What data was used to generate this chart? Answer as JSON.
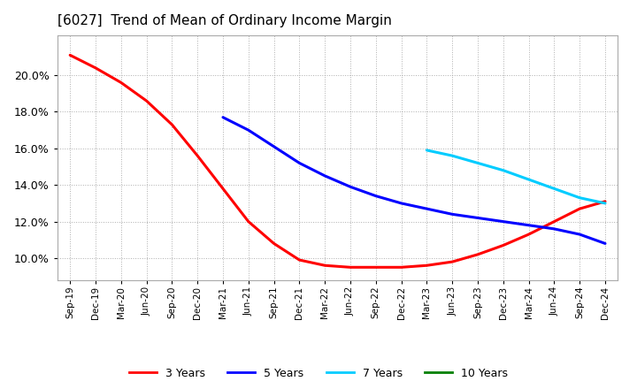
{
  "title": "[6027]  Trend of Mean of Ordinary Income Margin",
  "title_fontsize": 11,
  "background_color": "#ffffff",
  "plot_bg_color": "#ffffff",
  "grid_color": "#999999",
  "ylim": [
    0.088,
    0.222
  ],
  "yticks": [
    0.1,
    0.12,
    0.14,
    0.16,
    0.18,
    0.2
  ],
  "series": {
    "3 Years": {
      "color": "#ff0000",
      "points": [
        [
          0,
          0.211
        ],
        [
          1,
          0.204
        ],
        [
          2,
          0.196
        ],
        [
          3,
          0.186
        ],
        [
          4,
          0.173
        ],
        [
          5,
          0.156
        ],
        [
          6,
          0.138
        ],
        [
          7,
          0.12
        ],
        [
          8,
          0.108
        ],
        [
          9,
          0.099
        ],
        [
          10,
          0.096
        ],
        [
          11,
          0.095
        ],
        [
          12,
          0.095
        ],
        [
          13,
          0.095
        ],
        [
          14,
          0.096
        ],
        [
          15,
          0.098
        ],
        [
          16,
          0.102
        ],
        [
          17,
          0.107
        ],
        [
          18,
          0.113
        ],
        [
          19,
          0.12
        ],
        [
          20,
          0.127
        ],
        [
          21,
          0.131
        ]
      ]
    },
    "5 Years": {
      "color": "#0000ff",
      "points": [
        [
          6,
          0.177
        ],
        [
          7,
          0.17
        ],
        [
          8,
          0.161
        ],
        [
          9,
          0.152
        ],
        [
          10,
          0.145
        ],
        [
          11,
          0.139
        ],
        [
          12,
          0.134
        ],
        [
          13,
          0.13
        ],
        [
          14,
          0.127
        ],
        [
          15,
          0.124
        ],
        [
          16,
          0.122
        ],
        [
          17,
          0.12
        ],
        [
          18,
          0.118
        ],
        [
          19,
          0.116
        ],
        [
          20,
          0.113
        ],
        [
          21,
          0.108
        ]
      ]
    },
    "7 Years": {
      "color": "#00ccff",
      "points": [
        [
          14,
          0.159
        ],
        [
          15,
          0.156
        ],
        [
          16,
          0.152
        ],
        [
          17,
          0.148
        ],
        [
          18,
          0.143
        ],
        [
          19,
          0.138
        ],
        [
          20,
          0.133
        ],
        [
          21,
          0.13
        ]
      ]
    },
    "10 Years": {
      "color": "#008000",
      "points": [
        [
          21,
          0.13
        ]
      ]
    }
  },
  "x_labels": [
    "Sep-19",
    "Dec-19",
    "Mar-20",
    "Jun-20",
    "Sep-20",
    "Dec-20",
    "Mar-21",
    "Jun-21",
    "Sep-21",
    "Dec-21",
    "Mar-22",
    "Jun-22",
    "Sep-22",
    "Dec-22",
    "Mar-23",
    "Jun-23",
    "Sep-23",
    "Dec-23",
    "Mar-24",
    "Jun-24",
    "Sep-24",
    "Dec-24"
  ],
  "legend_labels": [
    "3 Years",
    "5 Years",
    "7 Years",
    "10 Years"
  ],
  "legend_colors": [
    "#ff0000",
    "#0000ff",
    "#00ccff",
    "#008000"
  ]
}
